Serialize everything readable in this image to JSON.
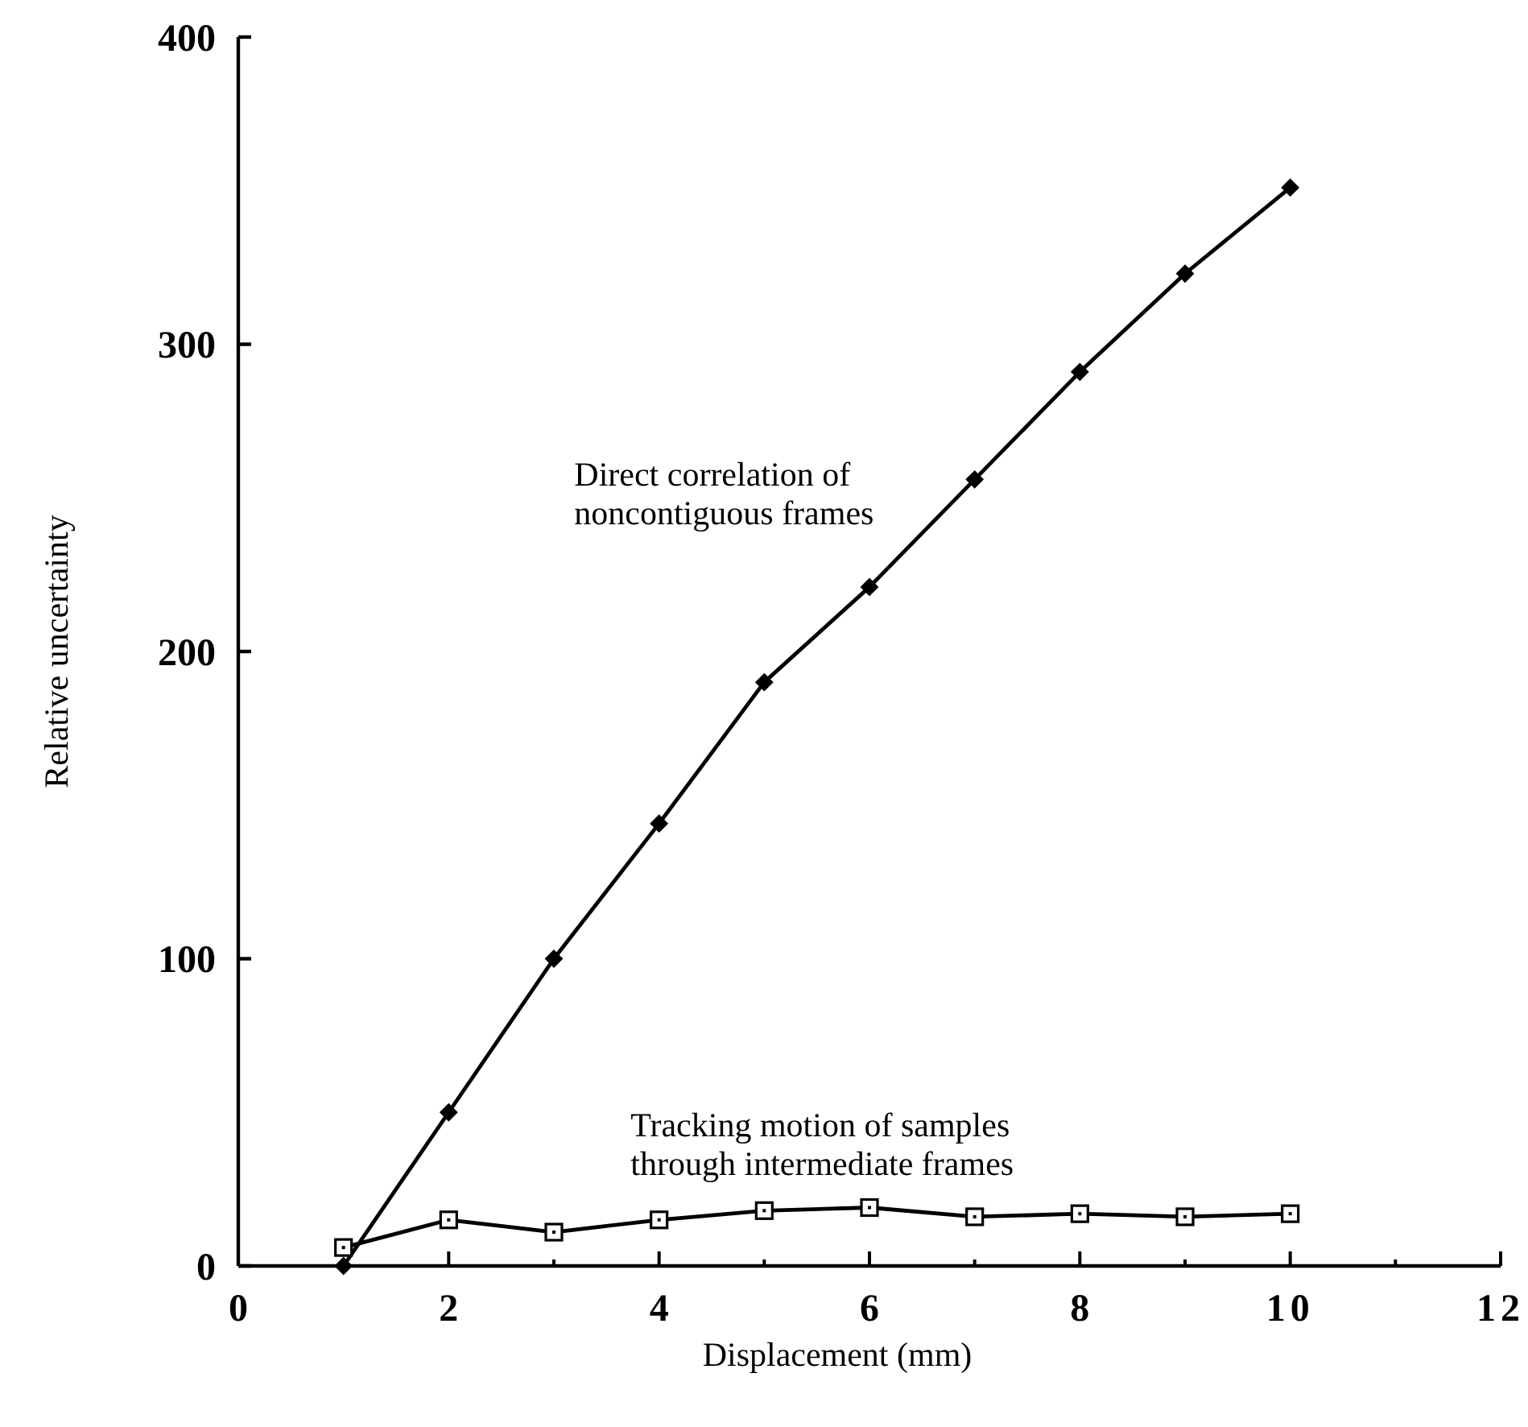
{
  "chart_data": {
    "type": "line",
    "xlabel": "Displacement (mm)",
    "ylabel": "Relative uncertainty",
    "x": [
      1,
      2,
      3,
      4,
      5,
      6,
      7,
      8,
      9,
      10
    ],
    "xlim": [
      0,
      12
    ],
    "xticks": [
      0,
      {
        "value": 1,
        "label": null
      },
      2,
      {
        "value": 3,
        "label": null
      },
      4,
      {
        "value": 5,
        "label": null
      },
      6,
      {
        "value": 7,
        "label": null
      },
      8,
      {
        "value": 9,
        "label": null
      },
      10,
      {
        "value": 11,
        "label": null
      },
      12
    ],
    "ylim": [
      0,
      400
    ],
    "yticks": [
      0,
      100,
      200,
      300,
      400
    ],
    "grid": false,
    "line_style": "solid",
    "series": [
      {
        "name": "Direct correlation of\nnoncontiguous frames",
        "color": "#000000",
        "marker": "diamond",
        "values": [
          0,
          50,
          100,
          144,
          190,
          221,
          256,
          291,
          323,
          351
        ]
      },
      {
        "name": "Tracking motion of samples\nthrough intermediate frames",
        "color": "#000000",
        "marker": "square",
        "values": [
          6,
          15,
          11,
          15,
          18,
          19,
          16,
          17,
          16,
          17
        ]
      }
    ]
  }
}
